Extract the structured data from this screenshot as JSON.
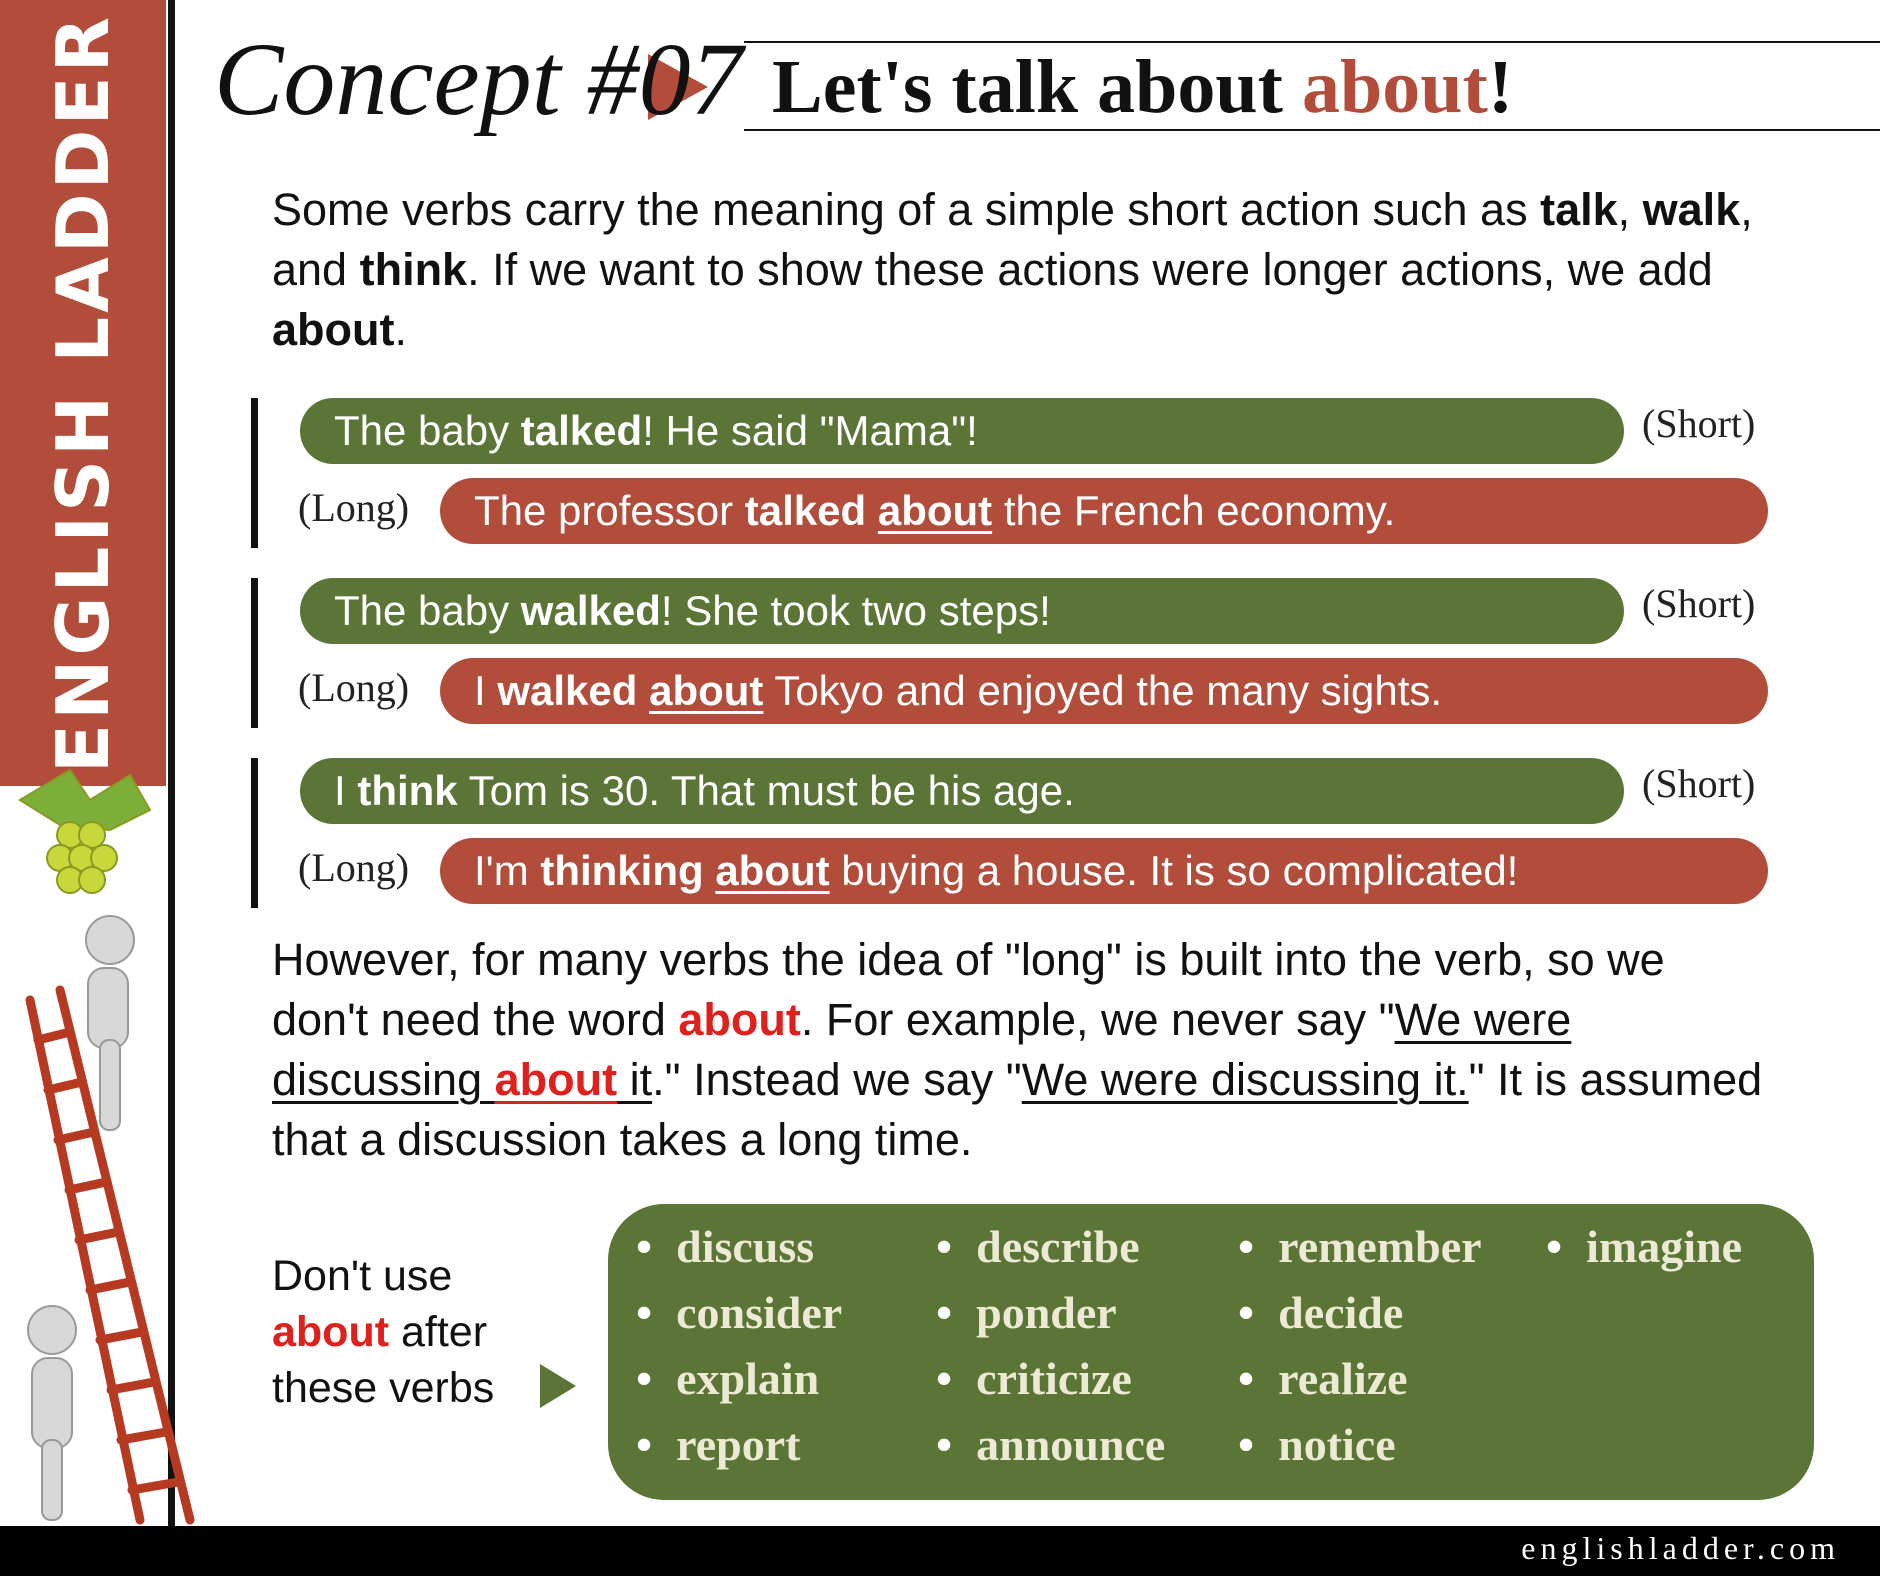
{
  "brand": {
    "side": "ENGLISH LADDER",
    "site": "englishladder.com"
  },
  "header": {
    "concept": "Concept #07",
    "title": [
      "Let's talk about ",
      "about",
      "!"
    ]
  },
  "intro": [
    "Some verbs carry the meaning of a simple short action such as ",
    "talk",
    ", ",
    "walk",
    ", and ",
    "think",
    ". If we want to show these actions were longer actions, we add ",
    "about",
    "."
  ],
  "examples": [
    {
      "short": {
        "label": "(Short)",
        "text": [
          "The baby ",
          "talked",
          "! He said \"Mama\"!"
        ]
      },
      "long": {
        "label": "(Long)",
        "text": [
          "The professor ",
          "talked",
          " ",
          "about",
          " the French economy."
        ]
      }
    },
    {
      "short": {
        "label": "(Short)",
        "text": [
          "The baby ",
          "walked",
          "! She took two steps!"
        ]
      },
      "long": {
        "label": "(Long)",
        "text": [
          "I  ",
          "walked",
          " ",
          "about",
          " Tokyo and enjoyed the many sights."
        ]
      }
    },
    {
      "short": {
        "label": "(Short)",
        "text": [
          "I ",
          "think",
          " Tom is 30. That must be his age."
        ]
      },
      "long": {
        "label": "(Long)",
        "text": [
          "I'm ",
          "thinking",
          " ",
          "about",
          " buying a house. It is so complicated!"
        ]
      }
    }
  ],
  "however": [
    "However, for many verbs the idea of \"long\" is built into the verb, so we don't need the word ",
    "about",
    ". For example, we never say \"",
    "We were discussing ",
    "about",
    " it",
    ".\" Instead we say \"",
    "We were discussing it.",
    "\" It is assumed that a discussion takes a long time."
  ],
  "dont_use": [
    "Don't use",
    "about",
    " after",
    "these verbs"
  ],
  "verbs": [
    [
      "discuss",
      "consider",
      "explain",
      "report"
    ],
    [
      "describe",
      "ponder",
      "criticize",
      "announce"
    ],
    [
      "remember",
      "decide",
      "realize",
      "notice"
    ],
    [
      "imagine"
    ]
  ]
}
